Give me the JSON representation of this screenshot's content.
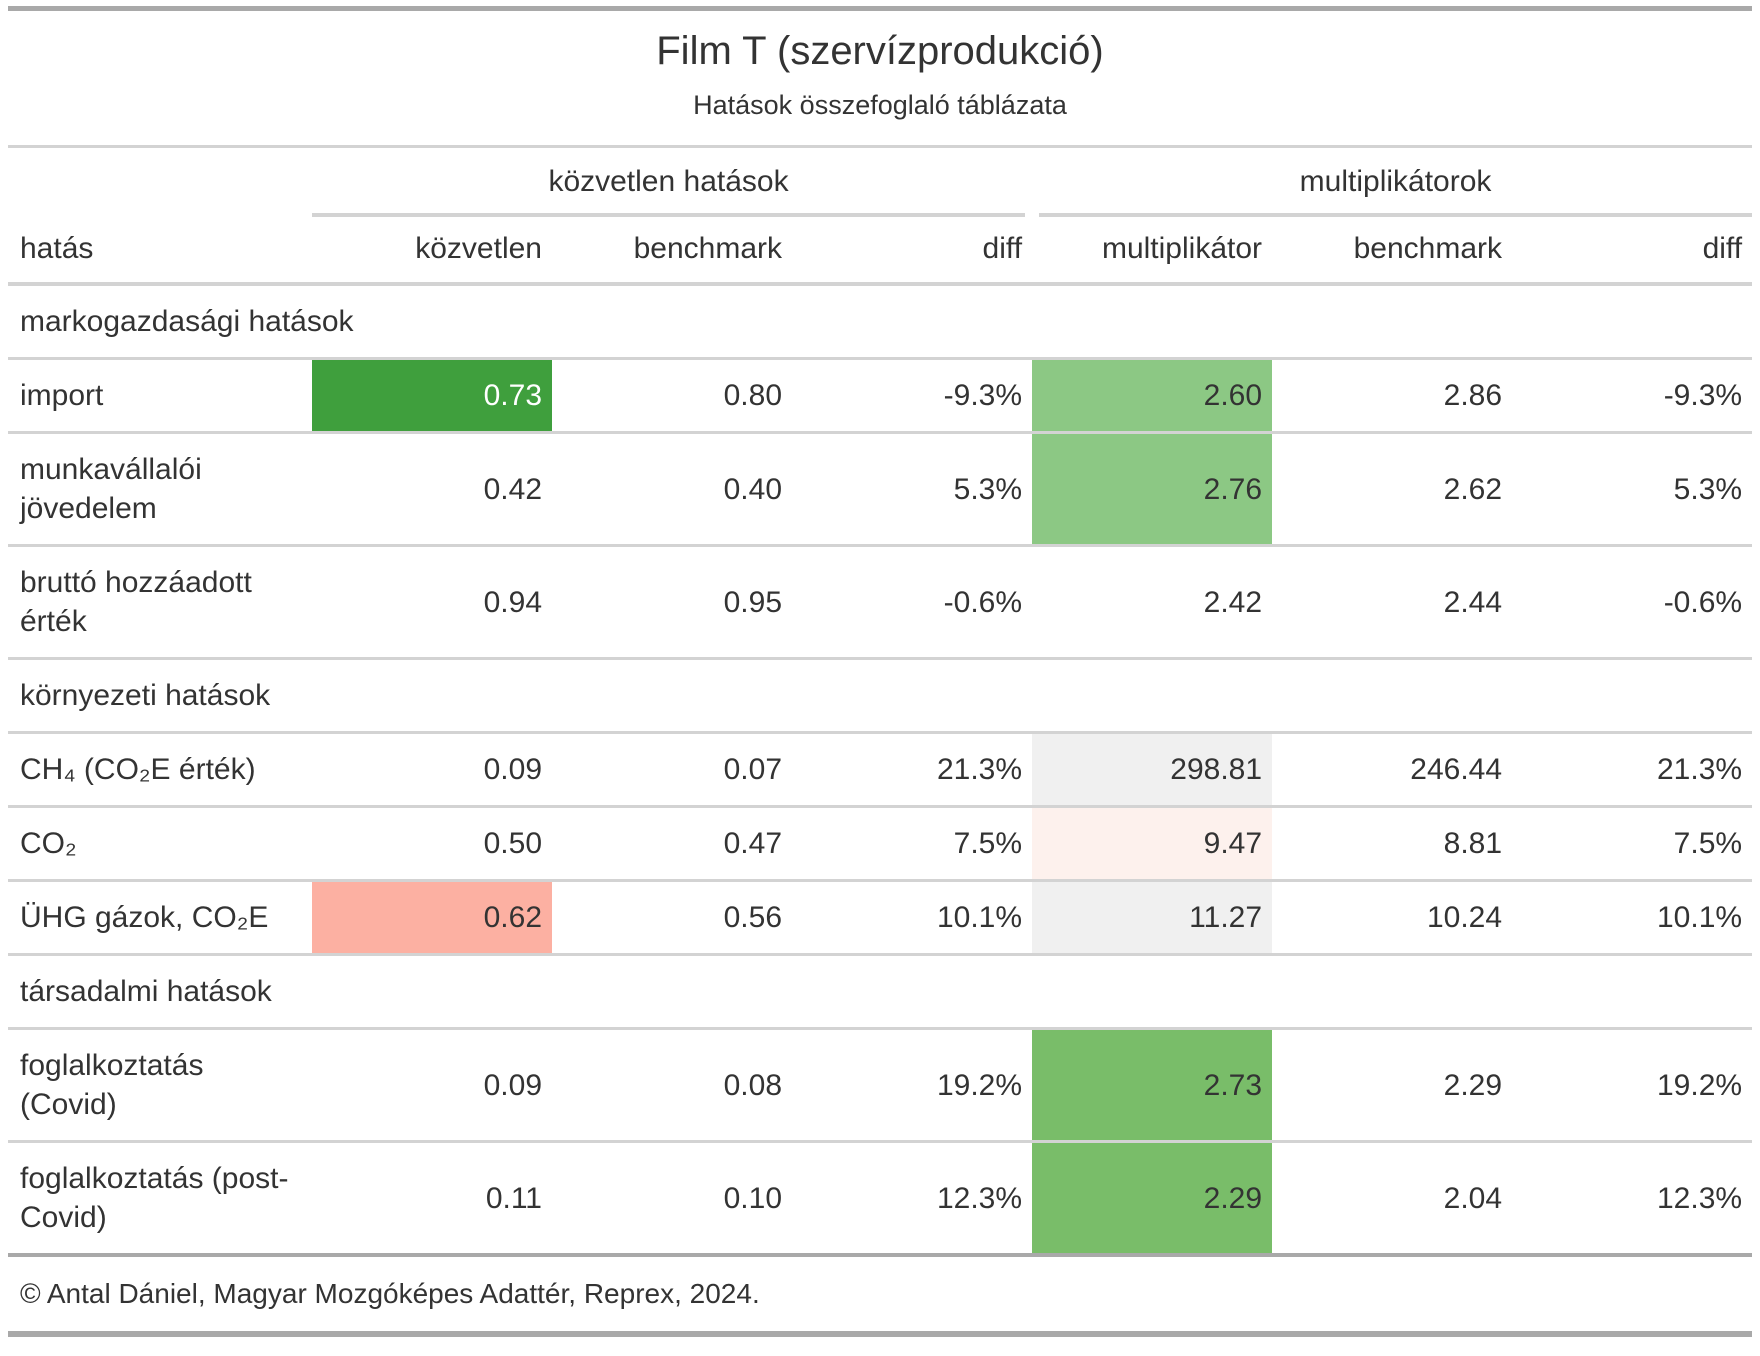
{
  "header": {
    "title": "Film T (szervízprodukció)",
    "subtitle": "Hatások összefoglaló táblázata"
  },
  "footer": {
    "source_note": "© Antal Dániel, Magyar Mozgóképes Adattér, Reprex, 2024."
  },
  "chart_data": {
    "type": "table",
    "title": "Film T (szervízprodukció)",
    "subtitle": "Hatások összefoglaló táblázata",
    "column_groups": [
      "közvetlen hatások",
      "multiplikátorok"
    ],
    "columns": [
      "hatás",
      "közvetlen",
      "benchmark",
      "diff",
      "multiplikátor",
      "benchmark",
      "diff"
    ],
    "highlight_colors": {
      "green_strong": "#3f9f3d",
      "green_soft": "#8cc884",
      "green_mid": "#79bd69",
      "salmon": "#fcb0a2",
      "pink_faint": "#fdf1ed",
      "gray_light": "#f0f0f0"
    },
    "groups": [
      {
        "label": "markogazdasági hatások",
        "rows": [
          {
            "label": "import",
            "cells": [
              {
                "v": "0.73",
                "hl": "green_strong",
                "fg": "#ffffff"
              },
              {
                "v": "0.80"
              },
              {
                "v": "-9.3%"
              },
              {
                "v": "2.60",
                "hl": "green_soft"
              },
              {
                "v": "2.86"
              },
              {
                "v": "-9.3%"
              }
            ]
          },
          {
            "label": "munkavállalói jövedelem",
            "cells": [
              {
                "v": "0.42"
              },
              {
                "v": "0.40"
              },
              {
                "v": "5.3%"
              },
              {
                "v": "2.76",
                "hl": "green_soft"
              },
              {
                "v": "2.62"
              },
              {
                "v": "5.3%"
              }
            ]
          },
          {
            "label": "bruttó hozzáadott érték",
            "cells": [
              {
                "v": "0.94"
              },
              {
                "v": "0.95"
              },
              {
                "v": "-0.6%"
              },
              {
                "v": "2.42"
              },
              {
                "v": "2.44"
              },
              {
                "v": "-0.6%"
              }
            ]
          }
        ]
      },
      {
        "label": "környezeti hatások",
        "rows": [
          {
            "label": "CH₄ (CO₂E érték)",
            "cells": [
              {
                "v": "0.09"
              },
              {
                "v": "0.07"
              },
              {
                "v": "21.3%"
              },
              {
                "v": "298.81",
                "hl": "gray_light"
              },
              {
                "v": "246.44"
              },
              {
                "v": "21.3%"
              }
            ]
          },
          {
            "label": "CO₂",
            "cells": [
              {
                "v": "0.50"
              },
              {
                "v": "0.47"
              },
              {
                "v": "7.5%"
              },
              {
                "v": "9.47",
                "hl": "pink_faint"
              },
              {
                "v": "8.81"
              },
              {
                "v": "7.5%"
              }
            ]
          },
          {
            "label": "ÜHG gázok, CO₂E",
            "cells": [
              {
                "v": "0.62",
                "hl": "salmon"
              },
              {
                "v": "0.56"
              },
              {
                "v": "10.1%"
              },
              {
                "v": "11.27",
                "hl": "gray_light"
              },
              {
                "v": "10.24"
              },
              {
                "v": "10.1%"
              }
            ]
          }
        ]
      },
      {
        "label": "társadalmi hatások",
        "rows": [
          {
            "label": "foglalkoztatás (Covid)",
            "cells": [
              {
                "v": "0.09"
              },
              {
                "v": "0.08"
              },
              {
                "v": "19.2%"
              },
              {
                "v": "2.73",
                "hl": "green_mid"
              },
              {
                "v": "2.29"
              },
              {
                "v": "19.2%"
              }
            ]
          },
          {
            "label": "foglalkoztatás (post-Covid)",
            "cells": [
              {
                "v": "0.11"
              },
              {
                "v": "0.10"
              },
              {
                "v": "12.3%"
              },
              {
                "v": "2.29",
                "hl": "green_mid"
              },
              {
                "v": "2.04"
              },
              {
                "v": "12.3%"
              }
            ]
          }
        ]
      }
    ]
  }
}
